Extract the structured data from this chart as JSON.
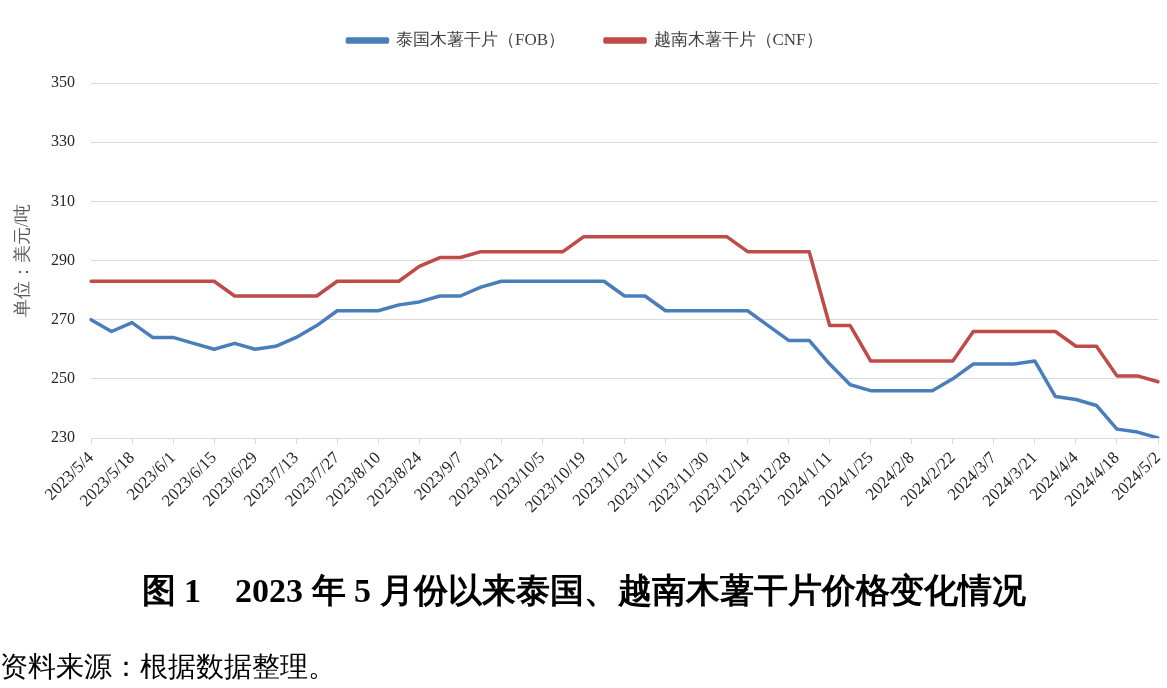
{
  "chart_data": {
    "type": "line",
    "title": "图 1　2023 年 5 月份以来泰国、越南木薯干片价格变化情况",
    "ylabel": "单位：美元/吨",
    "annotations": [
      "资料来源：根据数据整理。"
    ],
    "categories": [
      "2023/5/4",
      null,
      "2023/5/18",
      null,
      "2023/6/1",
      null,
      "2023/6/15",
      null,
      "2023/6/29",
      null,
      "2023/7/13",
      null,
      "2023/7/27",
      null,
      "2023/8/10",
      null,
      "2023/8/24",
      null,
      "2023/9/7",
      null,
      "2023/9/21",
      null,
      "2023/10/5",
      null,
      "2023/10/19",
      null,
      "2023/11/2",
      null,
      "2023/11/16",
      null,
      "2023/11/30",
      null,
      "2023/12/14",
      null,
      "2023/12/28",
      null,
      "2024/1/11",
      null,
      "2024/1/25",
      null,
      "2024/2/8",
      null,
      "2024/2/22",
      null,
      "2024/3/7",
      null,
      "2024/3/21",
      null,
      "2024/4/4",
      null,
      "2024/4/18",
      null,
      "2024/5/2"
    ],
    "series": [
      {
        "name": "泰国木薯干片（FOB）",
        "color": "#4a7ebb",
        "values": [
          270,
          266,
          269,
          264,
          264,
          262,
          260,
          262,
          260,
          261,
          264,
          268,
          273,
          273,
          273,
          275,
          276,
          278,
          278,
          281,
          283,
          283,
          283,
          283,
          283,
          283,
          278,
          278,
          273,
          273,
          273,
          273,
          273,
          268,
          263,
          263,
          255,
          248,
          246,
          246,
          246,
          246,
          250,
          255,
          255,
          255,
          256,
          244,
          243,
          241,
          233,
          232,
          230
        ]
      },
      {
        "name": "越南木薯干片（CNF）",
        "color": "#be4b48",
        "values": [
          283,
          283,
          283,
          283,
          283,
          283,
          283,
          278,
          278,
          278,
          278,
          278,
          283,
          283,
          283,
          283,
          288,
          291,
          291,
          293,
          293,
          293,
          293,
          293,
          298,
          298,
          298,
          298,
          298,
          298,
          298,
          298,
          293,
          293,
          293,
          293,
          268,
          268,
          256,
          256,
          256,
          256,
          256,
          266,
          266,
          266,
          266,
          266,
          261,
          261,
          251,
          251,
          249
        ]
      }
    ],
    "ylim": [
      230,
      350
    ],
    "yticks": [
      230,
      250,
      270,
      290,
      310,
      330,
      350
    ],
    "grid": "y",
    "legend": "top",
    "marker": "none",
    "line_style": "solid"
  }
}
